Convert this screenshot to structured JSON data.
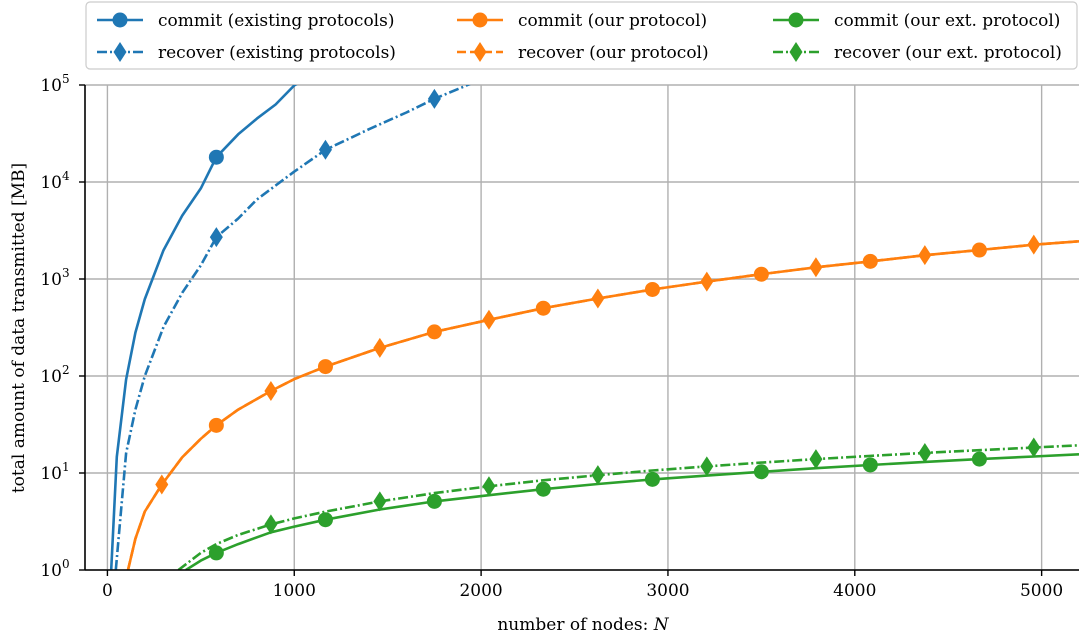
{
  "chart_data": {
    "type": "line",
    "xlabel": "number of nodes: N",
    "ylabel": "total amount of data transmitted [MB]",
    "xlim": [
      -120,
      5200
    ],
    "ylim": [
      1,
      100000
    ],
    "yscale": "log",
    "grid": true,
    "legend_position": "top",
    "x_ticks": [
      {
        "value": 0,
        "label": "0"
      },
      {
        "value": 1000,
        "label": "1000"
      },
      {
        "value": 2000,
        "label": "2000"
      },
      {
        "value": 3000,
        "label": "3000"
      },
      {
        "value": 4000,
        "label": "4000"
      },
      {
        "value": 5000,
        "label": "5000"
      }
    ],
    "y_ticks": [
      {
        "value": 1,
        "base": "10",
        "exp": "0"
      },
      {
        "value": 10,
        "base": "10",
        "exp": "1"
      },
      {
        "value": 100,
        "base": "10",
        "exp": "2"
      },
      {
        "value": 1000,
        "base": "10",
        "exp": "3"
      },
      {
        "value": 10000,
        "base": "10",
        "exp": "4"
      },
      {
        "value": 100000,
        "base": "10",
        "exp": "5"
      }
    ],
    "series": [
      {
        "name": "commit (existing protocols)",
        "color": "#1f77b4",
        "dash": "solid",
        "marker": "circle",
        "x": [
          20,
          50,
          100,
          150,
          200,
          300,
          400,
          500,
          583,
          700,
          800,
          900,
          1000,
          1200
        ],
        "y": [
          1,
          14.7,
          92,
          280,
          620,
          1980,
          4500,
          8600,
          18000,
          31000,
          45000,
          63000,
          99000,
          170000
        ],
        "markers_x": [
          583
        ],
        "markers_y": [
          18000
        ]
      },
      {
        "name": "recover (existing protocols)",
        "color": "#1f77b4",
        "dash": "dashdot",
        "marker": "diamond",
        "x": [
          45,
          100,
          150,
          200,
          300,
          400,
          500,
          583,
          700,
          800,
          900,
          1000,
          1167,
          1400,
          1600,
          1750,
          1900,
          2000
        ],
        "y": [
          1,
          16,
          45,
          100,
          320,
          720,
          1380,
          2700,
          4200,
          6600,
          9200,
          12800,
          21500,
          35000,
          52000,
          72000,
          95000,
          115000
        ],
        "markers_x": [
          583,
          1167,
          1750
        ],
        "markers_y": [
          2700,
          21500,
          72000
        ]
      },
      {
        "name": "commit (our protocol)",
        "color": "#ff7f0e",
        "dash": "solid",
        "marker": "circle",
        "x": [
          110,
          150,
          200,
          291,
          400,
          500,
          583,
          700,
          875,
          1000,
          1167,
          1458,
          1750,
          2042,
          2333,
          2625,
          2917,
          3208,
          3500,
          3792,
          4083,
          4375,
          4667,
          4958,
          5200
        ],
        "y": [
          1,
          2.1,
          4,
          7.6,
          14.5,
          22.5,
          31,
          45,
          70,
          93,
          125,
          195,
          285,
          380,
          500,
          630,
          780,
          940,
          1120,
          1320,
          1520,
          1760,
          1990,
          2260,
          2450
        ],
        "markers_x": [
          583,
          1167,
          1750,
          2333,
          2917,
          3500,
          4083,
          4667
        ],
        "markers_y": [
          31,
          125,
          285,
          500,
          780,
          1120,
          1520,
          1990
        ]
      },
      {
        "name": "recover (our protocol)",
        "color": "#ff7f0e",
        "dash": "dashed",
        "marker": "diamond",
        "x": [
          110,
          150,
          200,
          291,
          400,
          500,
          583,
          700,
          875,
          1000,
          1167,
          1458,
          1750,
          2042,
          2333,
          2625,
          2917,
          3208,
          3500,
          3792,
          4083,
          4375,
          4667,
          4958,
          5200
        ],
        "y": [
          1,
          2.1,
          4,
          7.6,
          14.5,
          22.5,
          31,
          45,
          70,
          93,
          125,
          195,
          285,
          380,
          500,
          630,
          780,
          940,
          1120,
          1320,
          1520,
          1760,
          1990,
          2260,
          2450
        ],
        "markers_x": [
          291,
          875,
          1458,
          2042,
          2625,
          3208,
          3792,
          4375,
          4958
        ],
        "markers_y": [
          7.6,
          70,
          195,
          380,
          630,
          940,
          1320,
          1760,
          2260
        ]
      },
      {
        "name": "commit (our ext. protocol)",
        "color": "#2ca02c",
        "dash": "solid",
        "marker": "circle",
        "x": [
          420,
          500,
          583,
          700,
          875,
          1000,
          1167,
          1458,
          1750,
          2042,
          2333,
          2625,
          2917,
          3208,
          3500,
          3792,
          4083,
          4375,
          4667,
          4958,
          5200
        ],
        "y": [
          1,
          1.25,
          1.5,
          1.85,
          2.45,
          2.8,
          3.3,
          4.2,
          5.1,
          5.9,
          6.8,
          7.7,
          8.6,
          9.4,
          10.3,
          11.2,
          12.1,
          13.0,
          13.9,
          14.8,
          15.6
        ],
        "markers_x": [
          583,
          1167,
          1750,
          2333,
          2917,
          3500,
          4083,
          4667
        ],
        "markers_y": [
          1.5,
          3.3,
          5.1,
          6.8,
          8.6,
          10.3,
          12.1,
          13.9
        ]
      },
      {
        "name": "recover (our ext. protocol)",
        "color": "#2ca02c",
        "dash": "dashdot",
        "marker": "diamond",
        "x": [
          380,
          500,
          583,
          700,
          875,
          1000,
          1167,
          1458,
          1750,
          2042,
          2333,
          2625,
          2917,
          3208,
          3500,
          3792,
          4083,
          4375,
          4667,
          4958,
          5200
        ],
        "y": [
          1,
          1.5,
          1.85,
          2.3,
          2.95,
          3.4,
          4.0,
          5.1,
          6.2,
          7.3,
          8.4,
          9.5,
          10.6,
          11.7,
          12.8,
          13.9,
          15.0,
          16.1,
          17.2,
          18.3,
          19.3
        ],
        "markers_x": [
          875,
          1458,
          2042,
          2625,
          3208,
          3792,
          4375,
          4958
        ],
        "markers_y": [
          2.95,
          5.1,
          7.3,
          9.5,
          11.7,
          13.9,
          16.1,
          18.3
        ]
      }
    ]
  }
}
